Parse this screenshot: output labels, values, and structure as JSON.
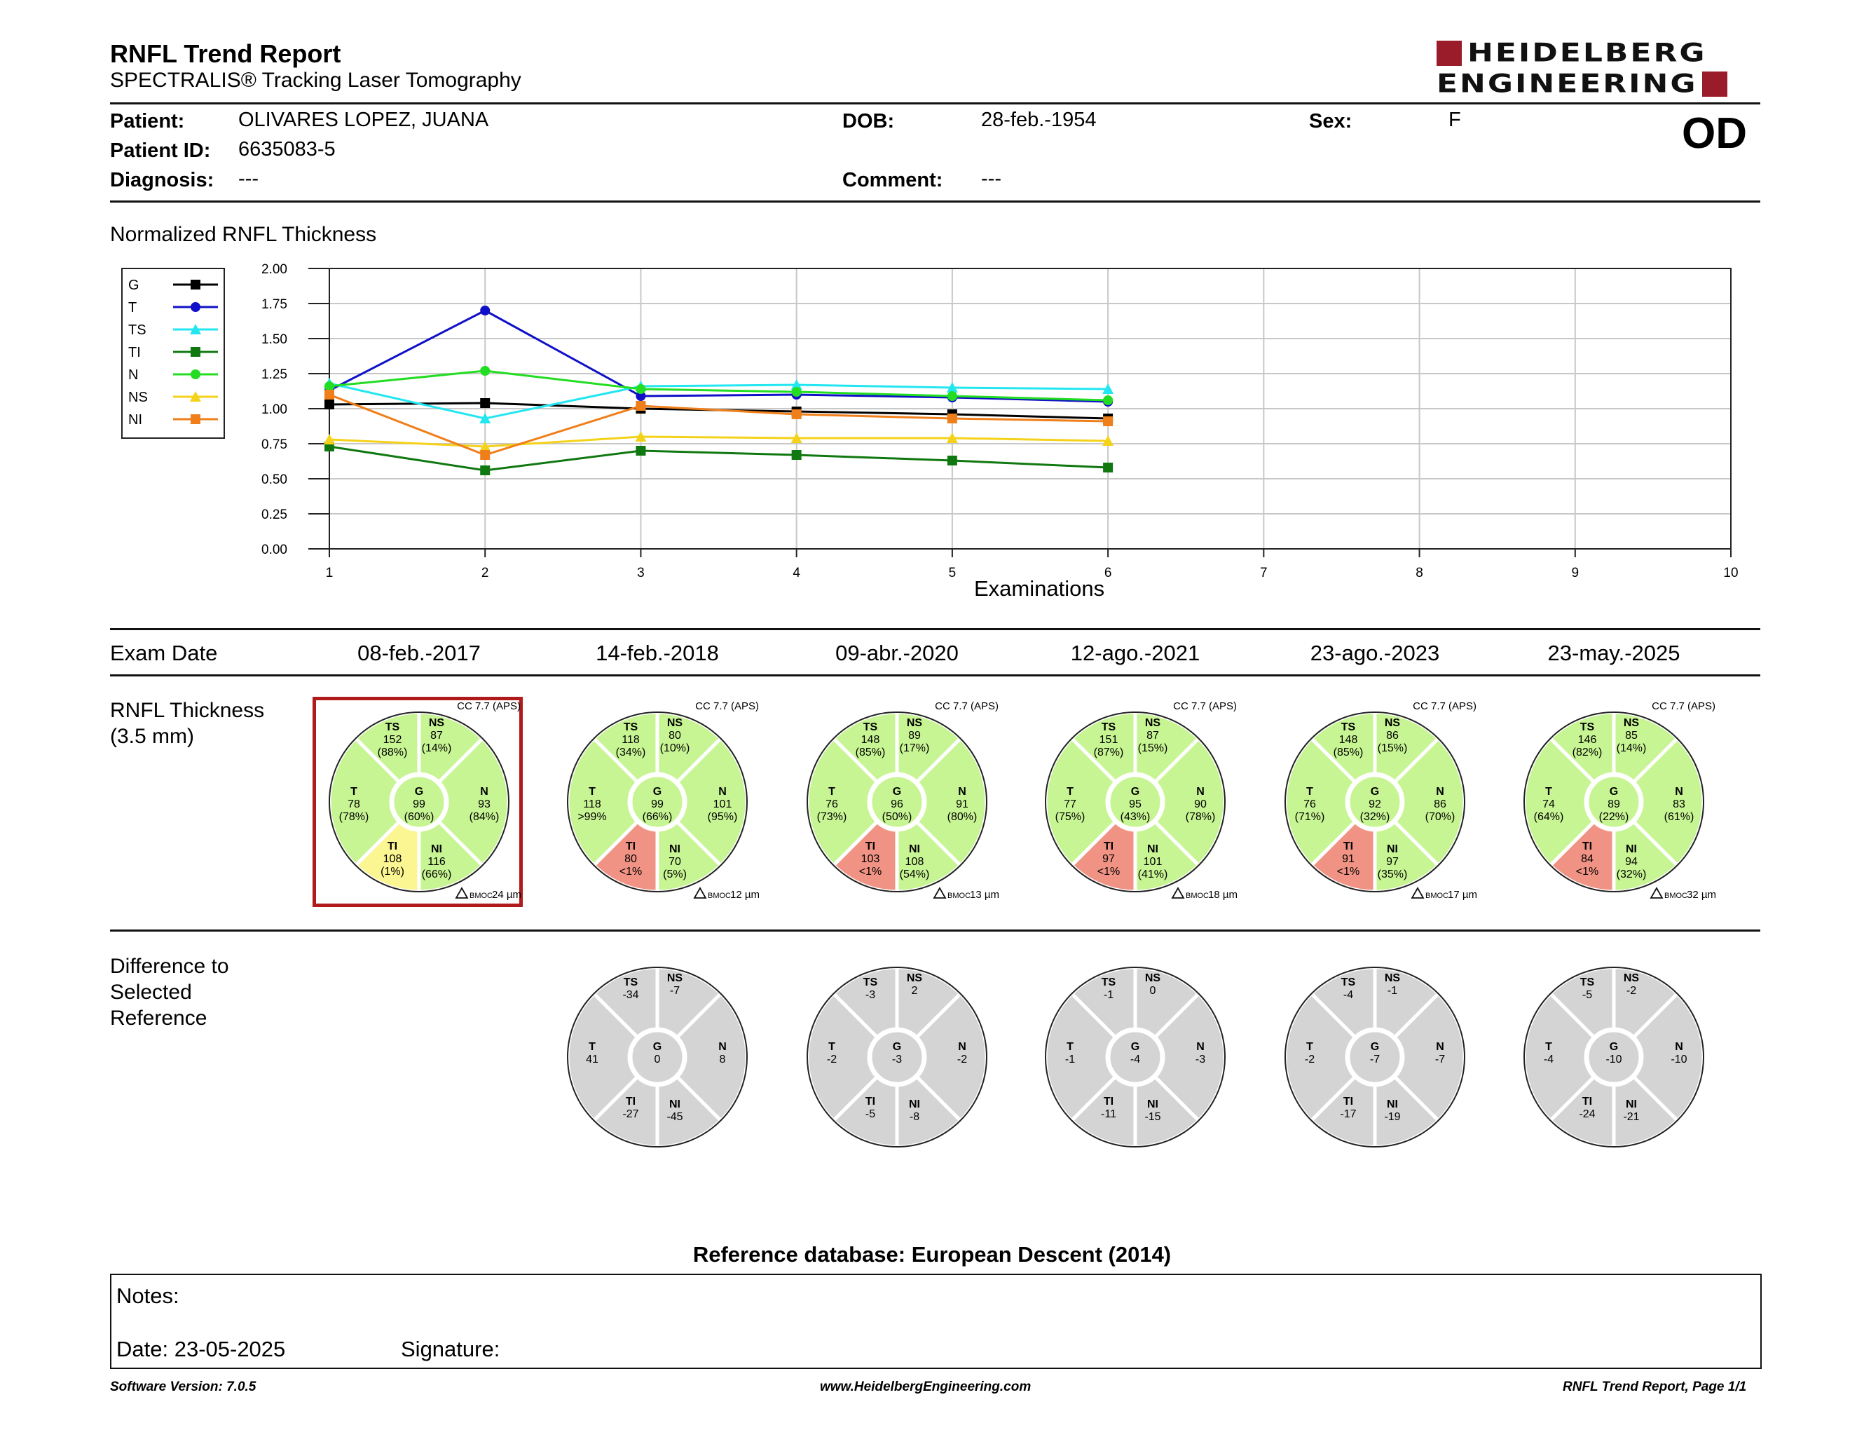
{
  "header": {
    "title": "RNFL Trend Report",
    "subtitle": "SPECTRALIS® Tracking Laser Tomography",
    "logo_line1": "HEIDELBERG",
    "logo_line2": "ENGINEERING",
    "brand_color": "#9a1c2a"
  },
  "patient": {
    "patient_label": "Patient:",
    "patient_value": "OLIVARES LOPEZ, JUANA",
    "dob_label": "DOB:",
    "dob_value": "28-feb.-1954",
    "sex_label": "Sex:",
    "sex_value": "F",
    "id_label": "Patient ID:",
    "id_value": "6635083-5",
    "diagnosis_label": "Diagnosis:",
    "diagnosis_value": "---",
    "comment_label": "Comment:",
    "comment_value": "---",
    "eye": "OD"
  },
  "trend": {
    "title": "Normalized RNFL Thickness",
    "xlabel": "Examinations"
  },
  "chart_data": {
    "type": "line",
    "title": "Normalized RNFL Thickness",
    "xlabel": "Examinations",
    "ylabel": "",
    "x": [
      1,
      2,
      3,
      4,
      5,
      6
    ],
    "xlim": [
      1,
      10
    ],
    "ylim": [
      0,
      2
    ],
    "x_ticks": [
      "1",
      "2",
      "3",
      "4",
      "5",
      "6",
      "7",
      "8",
      "9",
      "10"
    ],
    "y_ticks": [
      "0.00",
      "0.25",
      "0.50",
      "0.75",
      "1.00",
      "1.25",
      "1.50",
      "1.75",
      "2.00"
    ],
    "grid": true,
    "legend_position": "left",
    "series": [
      {
        "name": "G",
        "color": "#000000",
        "marker": "square",
        "values": [
          1.03,
          1.04,
          1.0,
          0.98,
          0.96,
          0.93
        ]
      },
      {
        "name": "T",
        "color": "#1010c8",
        "marker": "circle",
        "values": [
          1.13,
          1.7,
          1.09,
          1.1,
          1.08,
          1.05
        ]
      },
      {
        "name": "TS",
        "color": "#22e6f0",
        "marker": "triangle",
        "values": [
          1.18,
          0.93,
          1.16,
          1.17,
          1.15,
          1.14
        ]
      },
      {
        "name": "TI",
        "color": "#107810",
        "marker": "square",
        "values": [
          0.73,
          0.56,
          0.7,
          0.67,
          0.63,
          0.58
        ]
      },
      {
        "name": "N",
        "color": "#22dd22",
        "marker": "circle",
        "values": [
          1.16,
          1.27,
          1.14,
          1.12,
          1.09,
          1.06
        ]
      },
      {
        "name": "NS",
        "color": "#f5d21a",
        "marker": "triangle",
        "values": [
          0.78,
          0.73,
          0.8,
          0.79,
          0.79,
          0.77
        ]
      },
      {
        "name": "NI",
        "color": "#ef7f1a",
        "marker": "square",
        "values": [
          1.1,
          0.67,
          1.02,
          0.96,
          0.93,
          0.91
        ]
      }
    ]
  },
  "exams": {
    "section_label": "Exam Date",
    "thickness_label_1": "RNFL Thickness",
    "thickness_label_2": "(3.5 mm)",
    "diff_label_1": "Difference to",
    "diff_label_2": "Selected",
    "diff_label_3": "Reference",
    "bmo_prefix": "BMOC",
    "colors": {
      "normal": "#c8f593",
      "borderline": "#fbf592",
      "outside": "#f19384",
      "diff": "#d4d4d4"
    },
    "list": [
      {
        "date": "08-feb.-2017",
        "cc": "CC 7.7 (APS)",
        "bmo": "24 µm",
        "selected": true,
        "sectors": {
          "TS": {
            "value": "152",
            "pct": "(88%)",
            "status": "normal"
          },
          "NS": {
            "value": "87",
            "pct": "(14%)",
            "status": "normal"
          },
          "T": {
            "value": "78",
            "pct": "(78%)",
            "status": "normal"
          },
          "G": {
            "value": "99",
            "pct": "(60%)",
            "status": "normal"
          },
          "N": {
            "value": "93",
            "pct": "(84%)",
            "status": "normal"
          },
          "TI": {
            "value": "108",
            "pct": "(1%)",
            "status": "borderline"
          },
          "NI": {
            "value": "116",
            "pct": "(66%)",
            "status": "normal"
          }
        },
        "diff": null
      },
      {
        "date": "14-feb.-2018",
        "cc": "CC 7.7 (APS)",
        "bmo": "12 µm",
        "selected": false,
        "sectors": {
          "TS": {
            "value": "118",
            "pct": "(34%)",
            "status": "normal"
          },
          "NS": {
            "value": "80",
            "pct": "(10%)",
            "status": "normal"
          },
          "T": {
            "value": "118",
            "pct": ">99%",
            "status": "normal"
          },
          "G": {
            "value": "99",
            "pct": "(66%)",
            "status": "normal"
          },
          "N": {
            "value": "101",
            "pct": "(95%)",
            "status": "normal"
          },
          "TI": {
            "value": "80",
            "pct": "<1%",
            "status": "outside"
          },
          "NI": {
            "value": "70",
            "pct": "(5%)",
            "status": "normal"
          }
        },
        "diff": {
          "TS": "-34",
          "NS": "-7",
          "T": "41",
          "G": "0",
          "N": "8",
          "TI": "-27",
          "NI": "-45"
        }
      },
      {
        "date": "09-abr.-2020",
        "cc": "CC 7.7 (APS)",
        "bmo": "13 µm",
        "selected": false,
        "sectors": {
          "TS": {
            "value": "148",
            "pct": "(85%)",
            "status": "normal"
          },
          "NS": {
            "value": "89",
            "pct": "(17%)",
            "status": "normal"
          },
          "T": {
            "value": "76",
            "pct": "(73%)",
            "status": "normal"
          },
          "G": {
            "value": "96",
            "pct": "(50%)",
            "status": "normal"
          },
          "N": {
            "value": "91",
            "pct": "(80%)",
            "status": "normal"
          },
          "TI": {
            "value": "103",
            "pct": "<1%",
            "status": "outside"
          },
          "NI": {
            "value": "108",
            "pct": "(54%)",
            "status": "normal"
          }
        },
        "diff": {
          "TS": "-3",
          "NS": "2",
          "T": "-2",
          "G": "-3",
          "N": "-2",
          "TI": "-5",
          "NI": "-8"
        }
      },
      {
        "date": "12-ago.-2021",
        "cc": "CC 7.7 (APS)",
        "bmo": "18 µm",
        "selected": false,
        "sectors": {
          "TS": {
            "value": "151",
            "pct": "(87%)",
            "status": "normal"
          },
          "NS": {
            "value": "87",
            "pct": "(15%)",
            "status": "normal"
          },
          "T": {
            "value": "77",
            "pct": "(75%)",
            "status": "normal"
          },
          "G": {
            "value": "95",
            "pct": "(43%)",
            "status": "normal"
          },
          "N": {
            "value": "90",
            "pct": "(78%)",
            "status": "normal"
          },
          "TI": {
            "value": "97",
            "pct": "<1%",
            "status": "outside"
          },
          "NI": {
            "value": "101",
            "pct": "(41%)",
            "status": "normal"
          }
        },
        "diff": {
          "TS": "-1",
          "NS": "0",
          "T": "-1",
          "G": "-4",
          "N": "-3",
          "TI": "-11",
          "NI": "-15"
        }
      },
      {
        "date": "23-ago.-2023",
        "cc": "CC 7.7 (APS)",
        "bmo": "17 µm",
        "selected": false,
        "sectors": {
          "TS": {
            "value": "148",
            "pct": "(85%)",
            "status": "normal"
          },
          "NS": {
            "value": "86",
            "pct": "(15%)",
            "status": "normal"
          },
          "T": {
            "value": "76",
            "pct": "(71%)",
            "status": "normal"
          },
          "G": {
            "value": "92",
            "pct": "(32%)",
            "status": "normal"
          },
          "N": {
            "value": "86",
            "pct": "(70%)",
            "status": "normal"
          },
          "TI": {
            "value": "91",
            "pct": "<1%",
            "status": "outside"
          },
          "NI": {
            "value": "97",
            "pct": "(35%)",
            "status": "normal"
          }
        },
        "diff": {
          "TS": "-4",
          "NS": "-1",
          "T": "-2",
          "G": "-7",
          "N": "-7",
          "TI": "-17",
          "NI": "-19"
        }
      },
      {
        "date": "23-may.-2025",
        "cc": "CC 7.7 (APS)",
        "bmo": "32 µm",
        "selected": false,
        "sectors": {
          "TS": {
            "value": "146",
            "pct": "(82%)",
            "status": "normal"
          },
          "NS": {
            "value": "85",
            "pct": "(14%)",
            "status": "normal"
          },
          "T": {
            "value": "74",
            "pct": "(64%)",
            "status": "normal"
          },
          "G": {
            "value": "89",
            "pct": "(22%)",
            "status": "normal"
          },
          "N": {
            "value": "83",
            "pct": "(61%)",
            "status": "normal"
          },
          "TI": {
            "value": "84",
            "pct": "<1%",
            "status": "outside"
          },
          "NI": {
            "value": "94",
            "pct": "(32%)",
            "status": "normal"
          }
        },
        "diff": {
          "TS": "-5",
          "NS": "-2",
          "T": "-4",
          "G": "-10",
          "N": "-10",
          "TI": "-24",
          "NI": "-21"
        }
      }
    ]
  },
  "reference_db": "Reference database: European Descent (2014)",
  "notes": {
    "notes_label": "Notes:",
    "date_label": "Date: 23-05-2025",
    "signature_label": "Signature:"
  },
  "footer": {
    "software": "Software Version: 7.0.5",
    "website": "www.HeidelbergEngineering.com",
    "page": "RNFL Trend Report, Page 1/1"
  }
}
